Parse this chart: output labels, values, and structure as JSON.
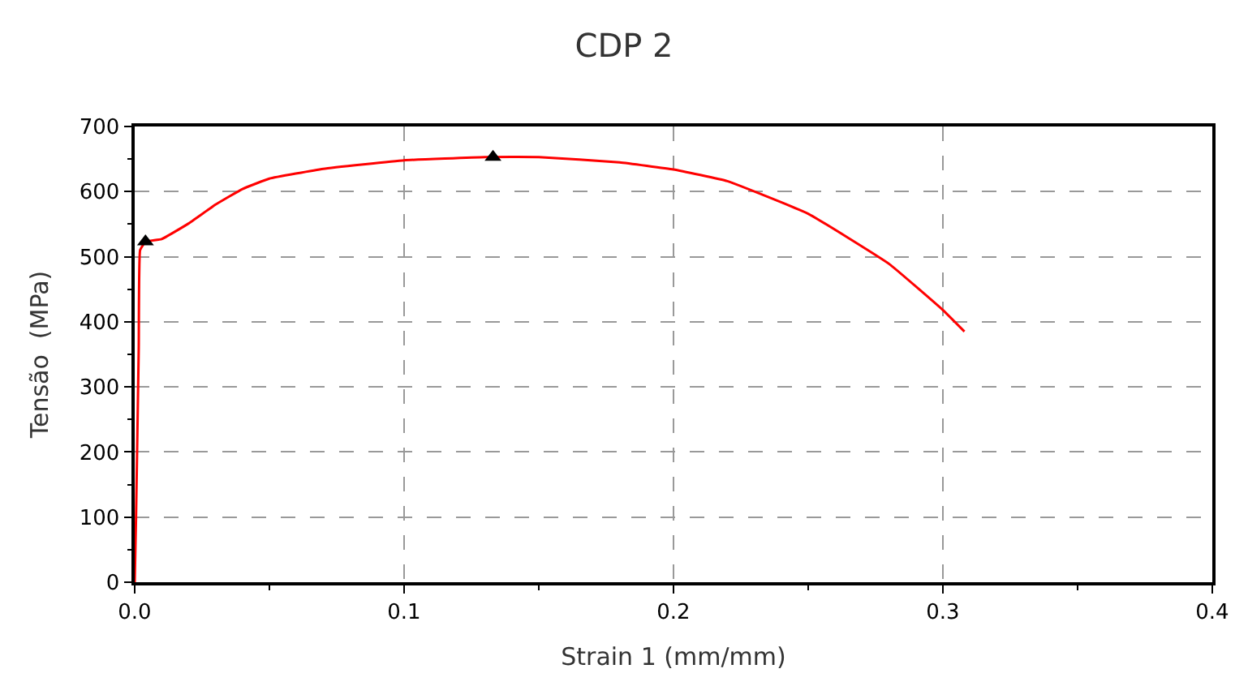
{
  "chart_data": {
    "type": "line",
    "title": "CDP 2",
    "xlabel": "Strain 1 (mm/mm)",
    "ylabel": "Tensão  (MPa)",
    "xlim": [
      0,
      0.4
    ],
    "xticks": [
      {
        "value": 0,
        "label": "0.0"
      },
      0.1,
      0.2,
      0.3,
      0.4
    ],
    "ylim": [
      0,
      700
    ],
    "yticks": [
      0,
      100,
      200,
      300,
      400,
      500,
      600,
      700
    ],
    "grid": true,
    "series": [
      {
        "color": "#ff0000",
        "marker": "none",
        "x": [
          0,
          0.0005,
          0.0015,
          0.002,
          0.004,
          0.01,
          0.02,
          0.03,
          0.04,
          0.05,
          0.07,
          0.1,
          0.13,
          0.15,
          0.18,
          0.2,
          0.22,
          0.25,
          0.28,
          0.3,
          0.308
        ],
        "values": [
          0,
          100,
          360,
          510,
          523,
          527,
          551,
          580,
          604,
          620,
          635,
          648,
          653,
          653,
          645,
          634,
          616,
          566,
          489,
          418,
          385
        ]
      },
      {
        "type": "scatter",
        "color": "#000000",
        "marker": "triangle",
        "x": [
          0.004,
          0.133
        ],
        "values": [
          523,
          653
        ]
      }
    ]
  }
}
